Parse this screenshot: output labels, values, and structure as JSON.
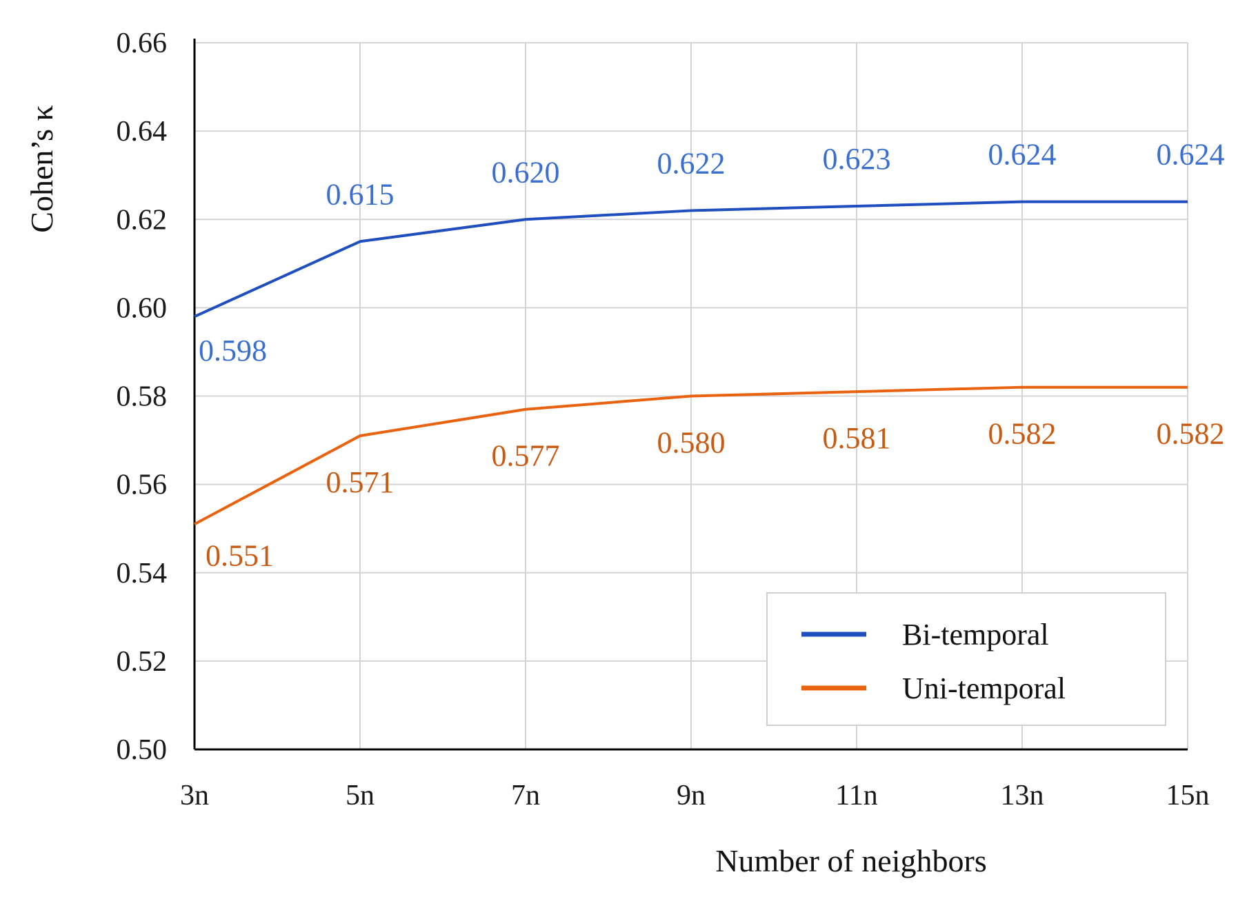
{
  "chart_data": {
    "type": "line",
    "title": "",
    "xlabel": "Number of neighbors",
    "ylabel": "Cohen’s κ",
    "categories": [
      "3n",
      "5n",
      "7n",
      "9n",
      "11n",
      "13n",
      "15n"
    ],
    "ylim": [
      0.5,
      0.66
    ],
    "yticks": [
      "0.50",
      "0.52",
      "0.54",
      "0.56",
      "0.58",
      "0.60",
      "0.62",
      "0.64",
      "0.66"
    ],
    "grid": true,
    "legend_position": "bottom-right",
    "series": [
      {
        "name": "Bi-temporal",
        "color": "#1f4fbf",
        "label_color": "#3a6fd0",
        "values": [
          0.598,
          0.615,
          0.62,
          0.622,
          0.623,
          0.624,
          0.624
        ],
        "labels": [
          "0.598",
          "0.615",
          "0.620",
          "0.622",
          "0.623",
          "0.624",
          "0.624"
        ]
      },
      {
        "name": "Uni-temporal",
        "color": "#e8620f",
        "label_color": "#c85a12",
        "values": [
          0.551,
          0.571,
          0.577,
          0.58,
          0.581,
          0.582,
          0.582
        ],
        "labels": [
          "0.551",
          "0.571",
          "0.577",
          "0.580",
          "0.581",
          "0.582",
          "0.582"
        ]
      }
    ]
  }
}
